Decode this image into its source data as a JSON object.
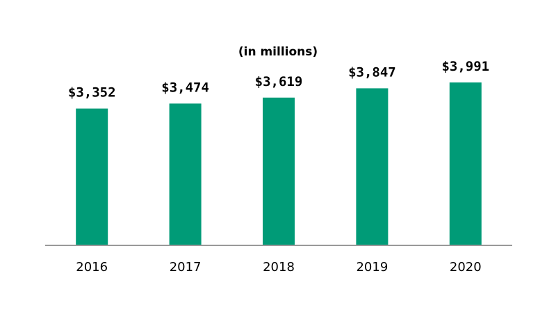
{
  "chart_data": {
    "type": "bar",
    "title": "",
    "subtitle": "(in millions)",
    "xlabel": "",
    "ylabel": "",
    "categories": [
      "2016",
      "2017",
      "2018",
      "2019",
      "2020"
    ],
    "values": [
      3352,
      3474,
      3619,
      3847,
      3991
    ],
    "value_labels": [
      "$3,352",
      "$3,474",
      "$3,619",
      "$3,847",
      "$3,991"
    ],
    "ylim": [
      0,
      4500
    ],
    "grid": false,
    "legend": "none",
    "bar_color": "#009b77",
    "axis_color": "#999999"
  }
}
